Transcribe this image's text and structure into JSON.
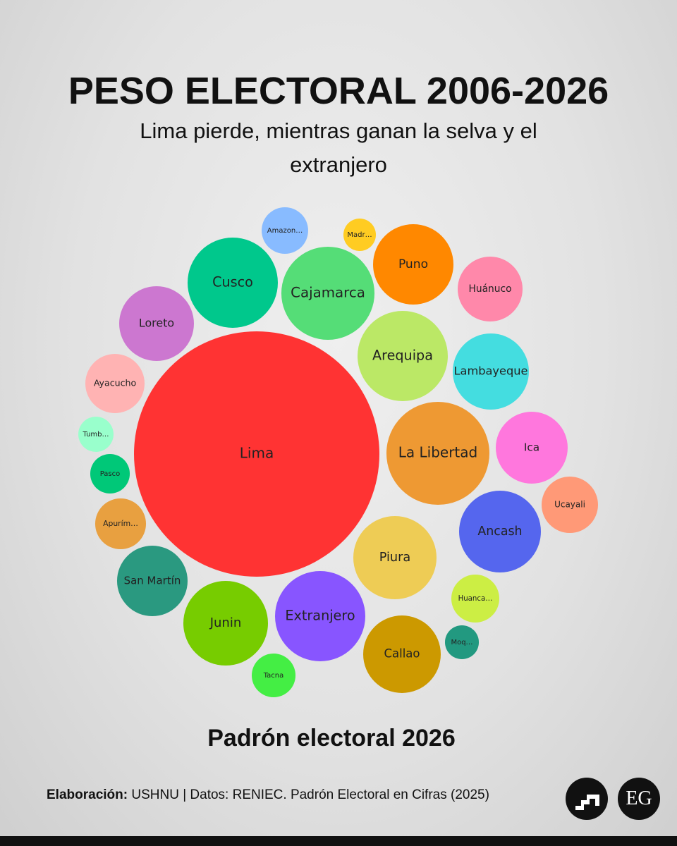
{
  "chart_data": {
    "type": "bubble",
    "title": "PESO ELECTORAL 2006-2026",
    "subtitle": "Lima pierde, mientras ganan la selva y el extranjero",
    "caption": "Padrón electoral 2026",
    "source_label": "Elaboración:",
    "source": "USHNU | Datos: RENIEC. Padrón Electoral en Cifras (2025)",
    "categories": [
      "Lima",
      "Cusco",
      "Loreto",
      "Ayacucho",
      "Tumb…",
      "Pasco",
      "Apurím…",
      "San Martín",
      "Junin",
      "Tacna",
      "Extranjero",
      "Callao",
      "Moq…",
      "Huanca…",
      "Piura",
      "Ancash",
      "Ucayali",
      "Ica",
      "La Libertad",
      "Lambayeque",
      "Arequipa",
      "Huánuco",
      "Puno",
      "Madr…",
      "Cajamarca",
      "Amazon…"
    ],
    "values": [
      8400,
      1136,
      779,
      489,
      173,
      218,
      360,
      694,
      999,
      267,
      1136,
      839,
      160,
      321,
      966,
      933,
      444,
      721,
      1479,
      809,
      1136,
      587,
      901,
      147,
      1210,
      302
    ],
    "colors": [
      "#ff3333",
      "#00c88c",
      "#cc77d0",
      "#ffb3b3",
      "#99ffcc",
      "#00c878",
      "#e8a040",
      "#2a9980",
      "#77cc00",
      "#44ee44",
      "#8855ff",
      "#cc9900",
      "#229980",
      "#ccee44",
      "#eecc55",
      "#5566ee",
      "#ff9977",
      "#ff77dd",
      "#ee9933",
      "#44dde0",
      "#bbe866",
      "#ff88aa",
      "#ff8800",
      "#ffcc22",
      "#55dd77",
      "#88bbff"
    ]
  }
}
